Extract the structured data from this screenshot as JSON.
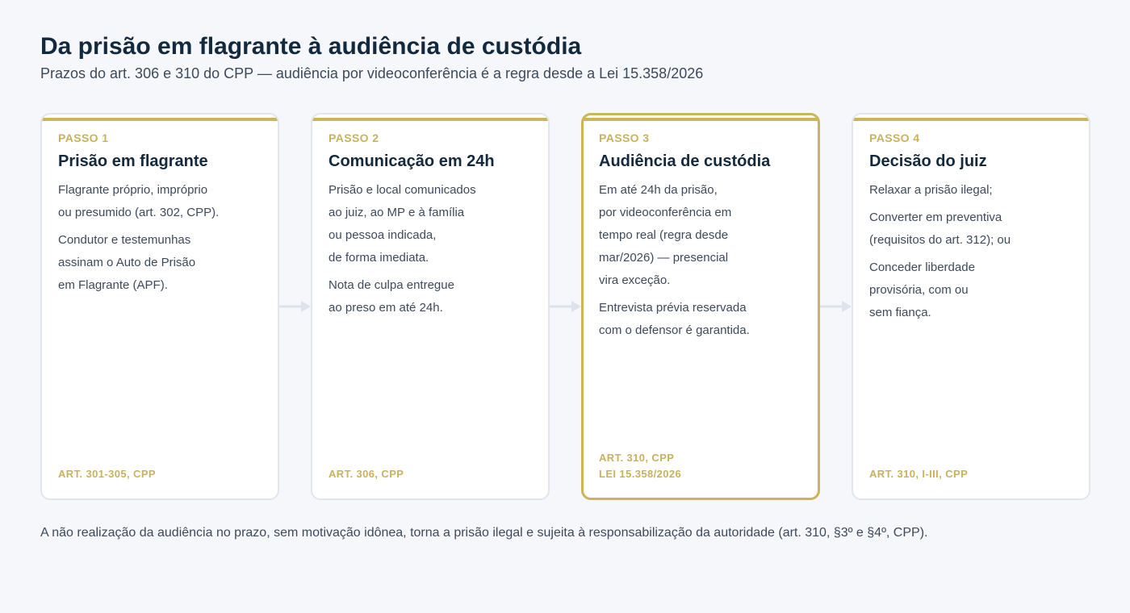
{
  "header": {
    "title": "Da prisão em flagrante à audiência de custódia",
    "subtitle": "Prazos do art. 306 e 310 do CPP — audiência por videoconferência é a regra desde a Lei 15.358/2026"
  },
  "colors": {
    "accent": "#cbb45a",
    "title": "#13293d",
    "text": "#3d4a5c",
    "border": "#e1e6ec",
    "background": "#f5f7fa"
  },
  "steps": [
    {
      "label": "PASSO 1",
      "title": "Prisão em flagrante",
      "highlighted": false,
      "paragraphs": [
        [
          "Flagrante próprio, impróprio",
          "ou presumido (art. 302, CPP)."
        ],
        [
          "Condutor e testemunhas",
          "assinam o Auto de Prisão",
          "em Flagrante (APF)."
        ]
      ],
      "refs": [
        "ART. 301-305, CPP"
      ]
    },
    {
      "label": "PASSO 2",
      "title": "Comunicação em 24h",
      "highlighted": false,
      "paragraphs": [
        [
          "Prisão e local comunicados",
          "ao juiz, ao MP e à família",
          "ou pessoa indicada,",
          "de forma imediata."
        ],
        [
          "Nota de culpa entregue",
          "ao preso em até 24h."
        ]
      ],
      "refs": [
        "ART. 306, CPP"
      ]
    },
    {
      "label": "PASSO 3",
      "title": "Audiência de custódia",
      "highlighted": true,
      "paragraphs": [
        [
          "Em até 24h da prisão,",
          "por videoconferência em",
          "tempo real (regra desde",
          "mar/2026) — presencial",
          "vira exceção."
        ],
        [
          "Entrevista prévia reservada",
          "com o defensor é garantida."
        ]
      ],
      "refs": [
        "ART. 310, CPP",
        "LEI 15.358/2026"
      ]
    },
    {
      "label": "PASSO 4",
      "title": "Decisão do juiz",
      "highlighted": false,
      "paragraphs": [
        [
          "Relaxar a prisão ilegal;"
        ],
        [
          "Converter em preventiva",
          "(requisitos do art. 312); ou"
        ],
        [
          "Conceder liberdade",
          "provisória, com ou",
          "sem fiança."
        ]
      ],
      "refs": [
        "ART. 310, I-III, CPP"
      ]
    }
  ],
  "footnote": "A não realização da audiência no prazo, sem motivação idônea, torna a prisão ilegal e sujeita à responsabilização da autoridade (art. 310, §3º e §4º, CPP)."
}
